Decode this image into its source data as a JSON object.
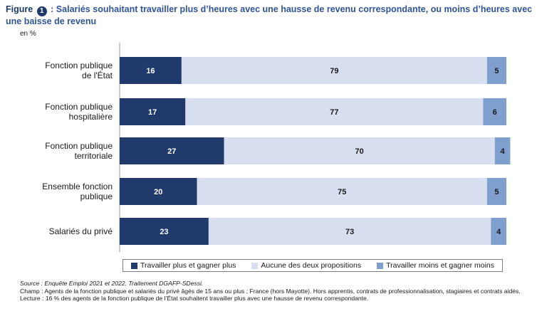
{
  "header": {
    "figure_label": "Figure",
    "figure_number": "1",
    "title": ": Salariés souhaitant travailler plus d’heures avec une hausse de revenu correspondante, ou moins d’heures avec une baisse de revenu",
    "unit": "en %"
  },
  "chart_data": {
    "type": "bar",
    "orientation": "horizontal",
    "stacked": true,
    "categories": [
      [
        "Fonction publique",
        "de l'État"
      ],
      [
        "Fonction publique",
        "hospitalière"
      ],
      [
        "Fonction publique",
        "territoriale"
      ],
      [
        "Ensemble fonction",
        "publique"
      ],
      [
        "Salariés du privé"
      ]
    ],
    "series": [
      {
        "name": "Travailler plus et gagner plus",
        "color": "#1f3a6b",
        "label_color": "#ffffff",
        "values": [
          16,
          17,
          27,
          20,
          23
        ]
      },
      {
        "name": "Aucune des deux propositions",
        "color": "#d6def0",
        "label_color": "#1a1a1a",
        "values": [
          79,
          77,
          70,
          75,
          73
        ]
      },
      {
        "name": "Travailler moins et gagner moins",
        "color": "#7f9fcf",
        "label_color": "#1a1a1a",
        "values": [
          5,
          6,
          4,
          5,
          4
        ]
      }
    ],
    "xlim": [
      0,
      100
    ],
    "grid": false,
    "legend_position": "bottom"
  },
  "notes": {
    "source": "Source : Enquête Emploi 2021 et 2022. Traitement DGAFP-SDessi.",
    "champ": "Champ : Agents de la fonction publique et salariés du privé âgés de 15 ans ou plus ; France (hors Mayotte). Hors apprentis, contrats de professionnalisation, stagiaires et contrats aidés.",
    "lecture": "Lecture : 16 % des agents de la fonction publique de l’État souhaitent travailler plus avec une hausse de revenu correspondante."
  }
}
